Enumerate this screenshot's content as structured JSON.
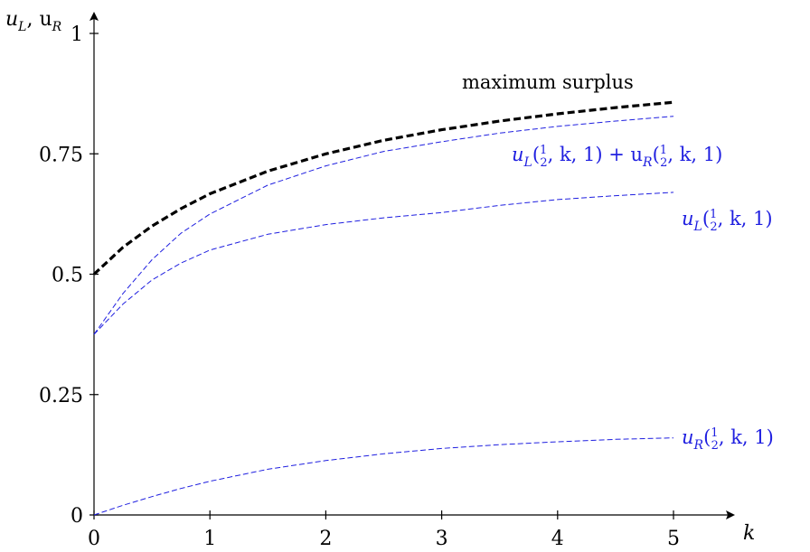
{
  "chart_data": {
    "type": "line",
    "xlabel": "k",
    "ylabel": "u_L, u_R",
    "xlim": [
      0,
      5.5
    ],
    "ylim": [
      0,
      1.05
    ],
    "x_ticks": [
      0,
      1,
      2,
      3,
      4,
      5
    ],
    "x_tick_labels": [
      "0",
      "1",
      "2",
      "3",
      "4",
      "5"
    ],
    "y_ticks": [
      0,
      0.25,
      0.5,
      0.75,
      1
    ],
    "y_tick_labels": [
      "0",
      "0.25",
      "0.5",
      "0.75",
      "1"
    ],
    "grid": false,
    "x": [
      0,
      0.25,
      0.5,
      0.75,
      1,
      1.5,
      2,
      2.5,
      3,
      3.5,
      4,
      4.5,
      5
    ],
    "series": [
      {
        "name": "maximum surplus",
        "color": "#000000",
        "style": "thick-dashed",
        "values": [
          0.5,
          0.556,
          0.6,
          0.636,
          0.667,
          0.714,
          0.75,
          0.778,
          0.8,
          0.818,
          0.833,
          0.846,
          0.857
        ]
      },
      {
        "name": "u_L(1/2,k,1) + u_R(1/2,k,1)",
        "color": "#1f1fe0",
        "style": "thin-dashed",
        "values": [
          0.375,
          0.46,
          0.53,
          0.585,
          0.625,
          0.685,
          0.725,
          0.755,
          0.775,
          0.793,
          0.807,
          0.818,
          0.828
        ]
      },
      {
        "name": "u_L(1/2,k,1)",
        "color": "#1f1fe0",
        "style": "thin-dashed",
        "values": [
          0.375,
          0.438,
          0.488,
          0.523,
          0.55,
          0.583,
          0.603,
          0.617,
          0.628,
          0.643,
          0.655,
          0.663,
          0.67
        ]
      },
      {
        "name": "u_R(1/2,k,1)",
        "color": "#1f1fe0",
        "style": "thin-dashed",
        "values": [
          0,
          0.02,
          0.038,
          0.055,
          0.07,
          0.095,
          0.113,
          0.127,
          0.138,
          0.146,
          0.152,
          0.157,
          0.16
        ]
      }
    ],
    "annotations": {
      "surplus_label": "maximum surplus",
      "sum_label_a": "u",
      "sum_label_b": "L",
      "sum_label_c": "(",
      "sum_label_num": "1",
      "sum_label_den": "2",
      "sum_label_d": ", k, 1) + u",
      "sum_label_e": "R",
      "sum_label_f": "(",
      "sum_label_num2": "1",
      "sum_label_den2": "2",
      "sum_label_g": ", k, 1)",
      "ul_label_a": "u",
      "ul_label_b": "L",
      "ul_label_c": "(",
      "ul_label_num": "1",
      "ul_label_den": "2",
      "ul_label_d": ", k, 1)",
      "ur_label_a": "u",
      "ur_label_b": "R",
      "ur_label_c": "(",
      "ur_label_num": "1",
      "ur_label_den": "2",
      "ur_label_d": ", k, 1)",
      "ylabel_a": "u",
      "ylabel_b": "L",
      "ylabel_c": ", u",
      "ylabel_d": "R"
    }
  }
}
